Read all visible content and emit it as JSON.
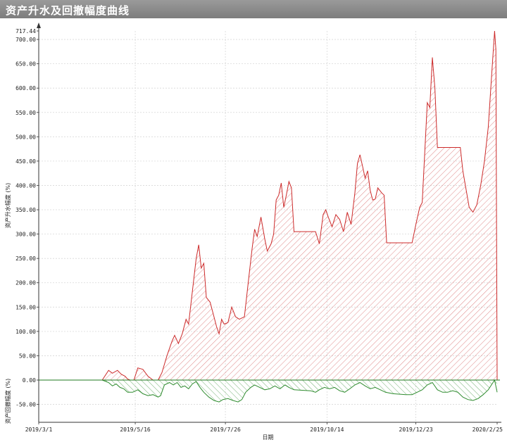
{
  "window": {
    "title": "资产升水及回撤幅度曲线"
  },
  "chart_data": {
    "type": "area",
    "xlabel": "日期",
    "ylabel_upper": "资产升水幅度 (%)",
    "ylabel_lower": "资产回撤幅度 (%)",
    "x_ticks": [
      "2019/3/1",
      "2019/5/16",
      "2019/7/26",
      "2019/10/14",
      "2019/12/23",
      "2020/2/25"
    ],
    "x_range": [
      "2019-03-01",
      "2020-02-25"
    ],
    "y_ticks": [
      "717.44",
      "700.00",
      "650.00",
      "600.00",
      "550.00",
      "500.00",
      "450.00",
      "400.00",
      "350.00",
      "300.00",
      "250.00",
      "200.00",
      "150.00",
      "100.00",
      "50.00",
      "0.00",
      "-50.00"
    ],
    "y_max_label": "717.44",
    "ylim_upper": [
      0,
      717.44
    ],
    "ylim_lower": [
      -50,
      0
    ],
    "grid": true,
    "colors": {
      "gain": "#cc2a2a",
      "drawdown": "#2e8b2e"
    },
    "series": [
      {
        "name": "资产升水幅度",
        "points": [
          [
            "2019-04-20",
            0
          ],
          [
            "2019-04-25",
            20
          ],
          [
            "2019-04-28",
            14
          ],
          [
            "2019-05-02",
            20
          ],
          [
            "2019-05-05",
            12
          ],
          [
            "2019-05-08",
            8
          ],
          [
            "2019-05-10",
            2
          ],
          [
            "2019-05-12",
            0
          ],
          [
            "2019-05-15",
            0
          ],
          [
            "2019-05-18",
            25
          ],
          [
            "2019-05-22",
            22
          ],
          [
            "2019-05-26",
            8
          ],
          [
            "2019-05-30",
            0
          ],
          [
            "2019-06-03",
            0
          ],
          [
            "2019-06-06",
            15
          ],
          [
            "2019-06-10",
            50
          ],
          [
            "2019-06-14",
            80
          ],
          [
            "2019-06-16",
            92
          ],
          [
            "2019-06-19",
            75
          ],
          [
            "2019-06-22",
            95
          ],
          [
            "2019-06-25",
            125
          ],
          [
            "2019-06-27",
            115
          ],
          [
            "2019-06-29",
            160
          ],
          [
            "2019-07-01",
            205
          ],
          [
            "2019-07-03",
            250
          ],
          [
            "2019-07-05",
            278
          ],
          [
            "2019-07-07",
            230
          ],
          [
            "2019-07-09",
            240
          ],
          [
            "2019-07-11",
            170
          ],
          [
            "2019-07-14",
            160
          ],
          [
            "2019-07-17",
            130
          ],
          [
            "2019-07-19",
            110
          ],
          [
            "2019-07-21",
            95
          ],
          [
            "2019-07-23",
            125
          ],
          [
            "2019-07-25",
            115
          ],
          [
            "2019-07-28",
            118
          ],
          [
            "2019-07-31",
            150
          ],
          [
            "2019-08-03",
            130
          ],
          [
            "2019-08-06",
            125
          ],
          [
            "2019-08-10",
            130
          ],
          [
            "2019-08-13",
            200
          ],
          [
            "2019-08-16",
            270
          ],
          [
            "2019-08-18",
            310
          ],
          [
            "2019-08-20",
            295
          ],
          [
            "2019-08-23",
            335
          ],
          [
            "2019-08-26",
            290
          ],
          [
            "2019-08-28",
            265
          ],
          [
            "2019-08-31",
            280
          ],
          [
            "2019-09-02",
            300
          ],
          [
            "2019-09-04",
            370
          ],
          [
            "2019-09-06",
            380
          ],
          [
            "2019-09-08",
            405
          ],
          [
            "2019-09-10",
            355
          ],
          [
            "2019-09-12",
            380
          ],
          [
            "2019-09-14",
            408
          ],
          [
            "2019-09-16",
            395
          ],
          [
            "2019-09-18",
            305
          ],
          [
            "2019-10-05",
            305
          ],
          [
            "2019-10-08",
            280
          ],
          [
            "2019-10-11",
            340
          ],
          [
            "2019-10-13",
            350
          ],
          [
            "2019-10-15",
            335
          ],
          [
            "2019-10-18",
            315
          ],
          [
            "2019-10-21",
            340
          ],
          [
            "2019-10-24",
            330
          ],
          [
            "2019-10-27",
            305
          ],
          [
            "2019-10-30",
            345
          ],
          [
            "2019-11-02",
            320
          ],
          [
            "2019-11-05",
            385
          ],
          [
            "2019-11-07",
            445
          ],
          [
            "2019-11-09",
            463
          ],
          [
            "2019-11-11",
            440
          ],
          [
            "2019-11-13",
            415
          ],
          [
            "2019-11-15",
            430
          ],
          [
            "2019-11-17",
            390
          ],
          [
            "2019-11-19",
            370
          ],
          [
            "2019-11-21",
            372
          ],
          [
            "2019-11-23",
            395
          ],
          [
            "2019-11-26",
            385
          ],
          [
            "2019-11-28",
            380
          ],
          [
            "2019-11-30",
            282
          ],
          [
            "2019-12-20",
            282
          ],
          [
            "2019-12-23",
            320
          ],
          [
            "2019-12-26",
            355
          ],
          [
            "2019-12-28",
            365
          ],
          [
            "2020-01-01",
            570
          ],
          [
            "2020-01-03",
            560
          ],
          [
            "2020-01-05",
            663
          ],
          [
            "2020-01-07",
            600
          ],
          [
            "2020-01-09",
            478
          ],
          [
            "2020-01-27",
            478
          ],
          [
            "2020-01-29",
            430
          ],
          [
            "2020-02-01",
            385
          ],
          [
            "2020-02-03",
            355
          ],
          [
            "2020-02-06",
            345
          ],
          [
            "2020-02-09",
            360
          ],
          [
            "2020-02-12",
            400
          ],
          [
            "2020-02-15",
            450
          ],
          [
            "2020-02-18",
            520
          ],
          [
            "2020-02-21",
            640
          ],
          [
            "2020-02-23",
            717.44
          ],
          [
            "2020-02-24",
            680
          ],
          [
            "2020-02-25",
            0
          ]
        ]
      },
      {
        "name": "资产回撤幅度",
        "points": [
          [
            "2019-04-20",
            0
          ],
          [
            "2019-04-25",
            -5
          ],
          [
            "2019-04-28",
            -12
          ],
          [
            "2019-05-01",
            -8
          ],
          [
            "2019-05-04",
            -15
          ],
          [
            "2019-05-07",
            -18
          ],
          [
            "2019-05-10",
            -25
          ],
          [
            "2019-05-14",
            -25
          ],
          [
            "2019-05-18",
            -20
          ],
          [
            "2019-05-22",
            -28
          ],
          [
            "2019-05-26",
            -32
          ],
          [
            "2019-05-30",
            -30
          ],
          [
            "2019-06-03",
            -35
          ],
          [
            "2019-06-05",
            -32
          ],
          [
            "2019-06-08",
            -10
          ],
          [
            "2019-06-12",
            -5
          ],
          [
            "2019-06-15",
            -10
          ],
          [
            "2019-06-18",
            -5
          ],
          [
            "2019-06-21",
            -15
          ],
          [
            "2019-06-24",
            -12
          ],
          [
            "2019-06-27",
            -18
          ],
          [
            "2019-06-30",
            -8
          ],
          [
            "2019-07-03",
            -3
          ],
          [
            "2019-07-06",
            -15
          ],
          [
            "2019-07-09",
            -25
          ],
          [
            "2019-07-13",
            -35
          ],
          [
            "2019-07-17",
            -42
          ],
          [
            "2019-07-21",
            -45
          ],
          [
            "2019-07-24",
            -40
          ],
          [
            "2019-07-28",
            -38
          ],
          [
            "2019-08-01",
            -42
          ],
          [
            "2019-08-05",
            -45
          ],
          [
            "2019-08-08",
            -40
          ],
          [
            "2019-08-11",
            -25
          ],
          [
            "2019-08-15",
            -15
          ],
          [
            "2019-08-18",
            -10
          ],
          [
            "2019-08-22",
            -15
          ],
          [
            "2019-08-26",
            -20
          ],
          [
            "2019-08-30",
            -18
          ],
          [
            "2019-09-03",
            -12
          ],
          [
            "2019-09-07",
            -18
          ],
          [
            "2019-09-11",
            -10
          ],
          [
            "2019-09-14",
            -15
          ],
          [
            "2019-09-18",
            -20
          ],
          [
            "2019-10-01",
            -22
          ],
          [
            "2019-10-05",
            -25
          ],
          [
            "2019-10-08",
            -20
          ],
          [
            "2019-10-12",
            -15
          ],
          [
            "2019-10-16",
            -18
          ],
          [
            "2019-10-20",
            -15
          ],
          [
            "2019-10-24",
            -22
          ],
          [
            "2019-10-28",
            -25
          ],
          [
            "2019-11-01",
            -18
          ],
          [
            "2019-11-05",
            -10
          ],
          [
            "2019-11-09",
            -5
          ],
          [
            "2019-11-13",
            -12
          ],
          [
            "2019-11-17",
            -18
          ],
          [
            "2019-11-21",
            -15
          ],
          [
            "2019-11-25",
            -20
          ],
          [
            "2019-11-29",
            -25
          ],
          [
            "2019-12-05",
            -28
          ],
          [
            "2019-12-15",
            -30
          ],
          [
            "2019-12-20",
            -30
          ],
          [
            "2019-12-24",
            -25
          ],
          [
            "2019-12-28",
            -20
          ],
          [
            "2020-01-01",
            -10
          ],
          [
            "2020-01-05",
            -5
          ],
          [
            "2020-01-09",
            -20
          ],
          [
            "2020-01-13",
            -25
          ],
          [
            "2020-01-17",
            -25
          ],
          [
            "2020-01-21",
            -22
          ],
          [
            "2020-01-25",
            -25
          ],
          [
            "2020-01-29",
            -35
          ],
          [
            "2020-02-02",
            -40
          ],
          [
            "2020-02-06",
            -42
          ],
          [
            "2020-02-10",
            -38
          ],
          [
            "2020-02-14",
            -30
          ],
          [
            "2020-02-18",
            -20
          ],
          [
            "2020-02-21",
            -8
          ],
          [
            "2020-02-23",
            0
          ],
          [
            "2020-02-25",
            -25
          ]
        ]
      }
    ]
  }
}
